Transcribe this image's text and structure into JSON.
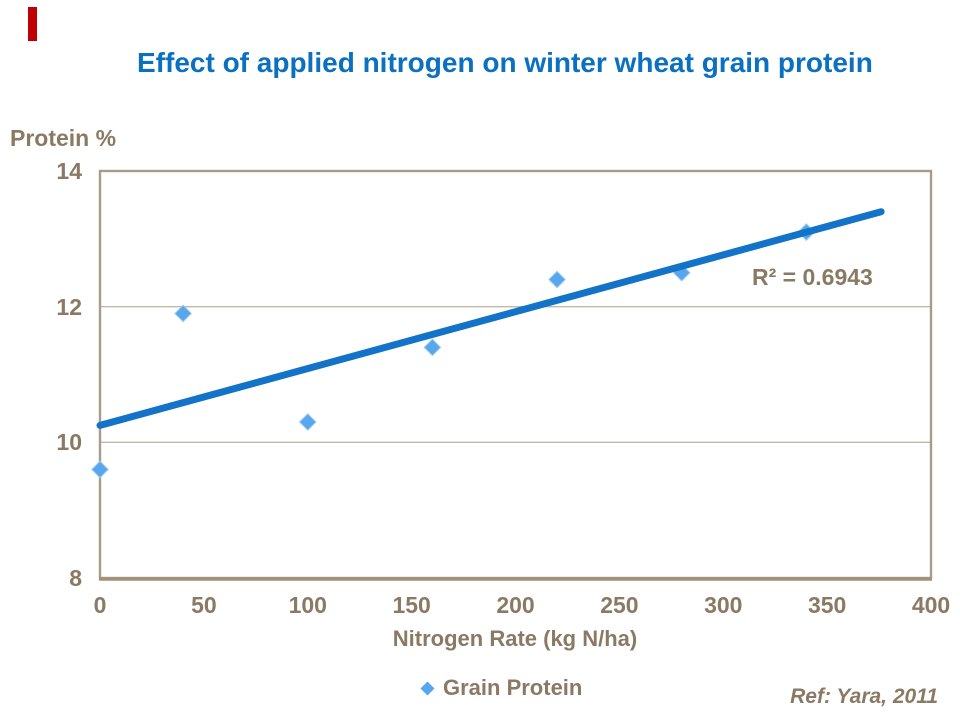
{
  "slide": {
    "accent_bar_color": "#C00000",
    "title_color": "#0B70C0",
    "reference": "Ref: Yara, 2011"
  },
  "chart_data": {
    "type": "scatter",
    "title": "Effect of applied nitrogen on winter wheat grain protein",
    "ylabel": "Protein %",
    "xlabel": "Nitrogen Rate (kg N/ha)",
    "xlim": [
      0,
      400
    ],
    "ylim": [
      8,
      14
    ],
    "xticks": [
      0,
      50,
      100,
      150,
      200,
      250,
      300,
      350,
      400
    ],
    "yticks": [
      8,
      10,
      12,
      14
    ],
    "grid": true,
    "legend_position": "bottom",
    "series": [
      {
        "name": "Grain Protein",
        "marker": "diamond",
        "marker_color": "#58A7ED",
        "marker_edge_color": "#9CCBF4",
        "points": [
          [
            0,
            9.6
          ],
          [
            40,
            11.9
          ],
          [
            100,
            10.3
          ],
          [
            160,
            11.4
          ],
          [
            220,
            12.4
          ],
          [
            280,
            12.5
          ],
          [
            340,
            13.1
          ]
        ]
      }
    ],
    "trendline": {
      "color": "#1273C8",
      "x": [
        0,
        376
      ],
      "y": [
        10.25,
        13.4
      ],
      "label": "R² = 0.6943"
    },
    "colors": {
      "axis_text": "#8A7A63",
      "border": "#A99B89",
      "axis_line": "#A09178",
      "gridline": "#C3B7A7"
    }
  }
}
